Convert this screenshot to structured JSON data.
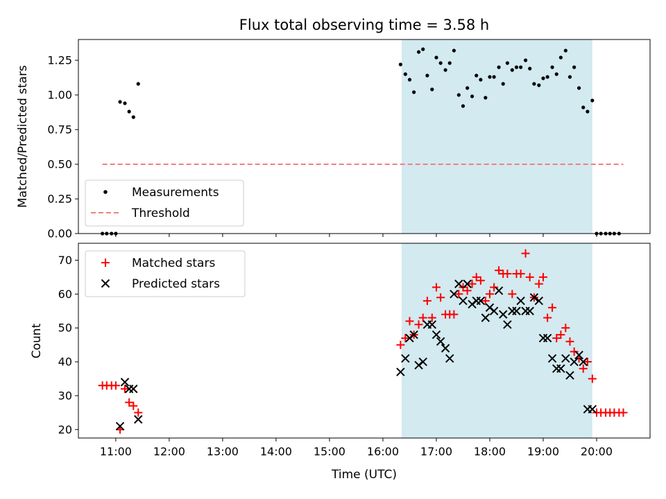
{
  "chart_data": [
    {
      "type": "scatter",
      "title": "Flux total observing time = 3.58 h",
      "ylabel": "Matched/Predicted stars",
      "xlabel": "",
      "xlim": [
        10.3,
        21.0
      ],
      "ylim": [
        0.0,
        1.4
      ],
      "yticks": [
        0.0,
        0.25,
        0.5,
        0.75,
        1.0,
        1.25
      ],
      "ytick_labels": [
        "0.00",
        "0.25",
        "0.50",
        "0.75",
        "1.00",
        "1.25"
      ],
      "shaded_interval": [
        16.35,
        19.92
      ],
      "shade_color": "#d2eaf0",
      "legend": {
        "placement": "lower-left",
        "entries": [
          "Measurements",
          "Threshold"
        ]
      },
      "series": [
        {
          "name": "Measurements",
          "marker": "dot",
          "color": "#000000",
          "x": [
            10.75,
            10.83,
            10.92,
            11.0,
            11.08,
            11.17,
            11.25,
            11.33,
            11.42,
            16.33,
            16.42,
            16.5,
            16.58,
            16.67,
            16.75,
            16.83,
            16.92,
            17.0,
            17.08,
            17.17,
            17.25,
            17.33,
            17.42,
            17.5,
            17.58,
            17.67,
            17.75,
            17.83,
            17.92,
            18.0,
            18.08,
            18.17,
            18.25,
            18.33,
            18.42,
            18.5,
            18.58,
            18.67,
            18.75,
            18.83,
            18.92,
            19.0,
            19.08,
            19.17,
            19.25,
            19.33,
            19.42,
            19.5,
            19.58,
            19.67,
            19.75,
            19.83,
            19.92,
            20.0,
            20.08,
            20.17,
            20.25,
            20.33,
            20.42
          ],
          "y": [
            0.0,
            0.0,
            0.0,
            0.0,
            0.95,
            0.94,
            0.88,
            0.84,
            1.08,
            1.22,
            1.15,
            1.11,
            1.02,
            1.31,
            1.33,
            1.14,
            1.04,
            1.27,
            1.23,
            1.18,
            1.23,
            1.32,
            1.0,
            0.92,
            1.05,
            0.99,
            1.14,
            1.11,
            0.98,
            1.13,
            1.13,
            1.2,
            1.08,
            1.23,
            1.18,
            1.2,
            1.2,
            1.25,
            1.19,
            1.08,
            1.07,
            1.12,
            1.13,
            1.2,
            1.15,
            1.27,
            1.32,
            1.13,
            1.2,
            1.05,
            0.91,
            0.88,
            0.96,
            0.0,
            0.0,
            0.0,
            0.0,
            0.0,
            0.0
          ]
        },
        {
          "name": "Threshold",
          "style": "dashed",
          "color": "#f08080",
          "x": [
            10.75,
            20.5
          ],
          "y": [
            0.5,
            0.5
          ]
        }
      ]
    },
    {
      "type": "scatter",
      "title": "",
      "ylabel": "Count",
      "xlabel": "Time (UTC)",
      "xlim": [
        10.3,
        21.0
      ],
      "ylim": [
        17.5,
        75.0
      ],
      "yticks": [
        20,
        30,
        40,
        50,
        60,
        70
      ],
      "xticks": [
        11,
        12,
        13,
        14,
        15,
        16,
        17,
        18,
        19,
        20
      ],
      "xtick_labels": [
        "11:00",
        "12:00",
        "13:00",
        "14:00",
        "15:00",
        "16:00",
        "17:00",
        "18:00",
        "19:00",
        "20:00"
      ],
      "shaded_interval": [
        16.35,
        19.92
      ],
      "shade_color": "#d2eaf0",
      "legend": {
        "placement": "top-left",
        "entries": [
          "Matched stars",
          "Predicted stars"
        ]
      },
      "series": [
        {
          "name": "Matched stars",
          "marker": "plus",
          "color": "#ff0000",
          "x": [
            10.75,
            10.83,
            10.92,
            11.0,
            11.08,
            11.17,
            11.25,
            11.33,
            11.42,
            16.33,
            16.42,
            16.5,
            16.58,
            16.67,
            16.75,
            16.83,
            16.92,
            17.0,
            17.08,
            17.17,
            17.25,
            17.33,
            17.42,
            17.5,
            17.58,
            17.67,
            17.75,
            17.83,
            17.92,
            18.0,
            18.08,
            18.17,
            18.25,
            18.33,
            18.42,
            18.5,
            18.58,
            18.67,
            18.75,
            18.83,
            18.92,
            19.0,
            19.08,
            19.17,
            19.25,
            19.33,
            19.42,
            19.5,
            19.58,
            19.67,
            19.75,
            19.83,
            19.92,
            20.0,
            20.08,
            20.17,
            20.25,
            20.33,
            20.42,
            20.5
          ],
          "y": [
            33,
            33,
            33,
            33,
            20,
            32,
            28,
            27,
            25,
            45,
            47,
            52,
            48,
            51,
            53,
            58,
            53,
            62,
            59,
            54,
            54,
            54,
            60,
            62,
            61,
            63,
            65,
            64,
            58,
            60,
            62,
            67,
            66,
            66,
            60,
            66,
            66,
            72,
            65,
            59,
            63,
            65,
            53,
            56,
            47,
            48,
            50,
            46,
            43,
            41,
            38,
            40,
            35,
            25,
            25,
            25,
            25,
            25,
            25,
            25
          ]
        },
        {
          "name": "Predicted stars",
          "marker": "x",
          "color": "#000000",
          "x": [
            11.08,
            11.17,
            11.25,
            11.33,
            11.42,
            16.33,
            16.42,
            16.5,
            16.58,
            16.67,
            16.75,
            16.83,
            16.92,
            17.0,
            17.08,
            17.17,
            17.25,
            17.33,
            17.42,
            17.5,
            17.58,
            17.67,
            17.75,
            17.83,
            17.92,
            18.0,
            18.08,
            18.17,
            18.25,
            18.33,
            18.42,
            18.5,
            18.58,
            18.67,
            18.75,
            18.83,
            18.92,
            19.0,
            19.08,
            19.17,
            19.25,
            19.33,
            19.42,
            19.5,
            19.58,
            19.67,
            19.75,
            19.83,
            19.92
          ],
          "y": [
            21,
            34,
            32,
            32,
            23,
            37,
            41,
            47,
            48,
            39,
            40,
            51,
            51,
            48,
            46,
            44,
            41,
            60,
            63,
            58,
            63,
            57,
            58,
            58,
            53,
            56,
            55,
            61,
            54,
            51,
            55,
            55,
            58,
            55,
            55,
            59,
            58,
            47,
            47,
            41,
            38,
            38,
            41,
            36,
            40,
            42,
            40,
            26,
            26
          ]
        }
      ]
    }
  ]
}
